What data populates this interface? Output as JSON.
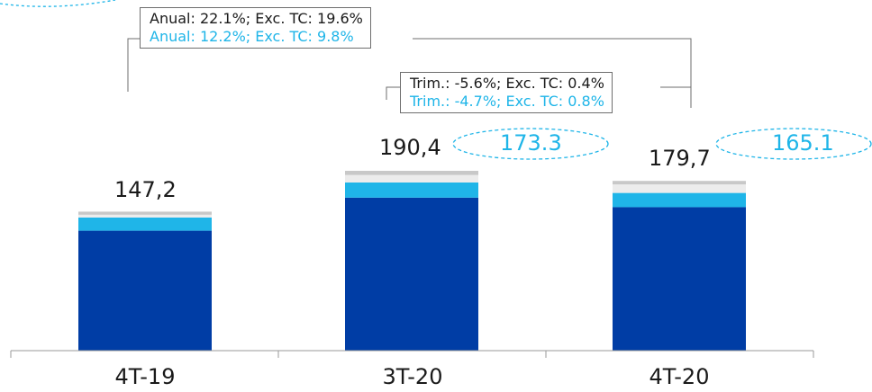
{
  "chart_data": {
    "type": "bar",
    "stacked": true,
    "categories": [
      "4T-19",
      "3T-20",
      "4T-20"
    ],
    "totals_text": [
      "147,2",
      "190,4",
      "179,7"
    ],
    "totals": [
      147.2,
      190.4,
      179.7
    ],
    "series": [
      {
        "name": "",
        "color": "#003da5",
        "values": [
          127.0,
          162.0,
          152.0
        ]
      },
      {
        "name": "",
        "color": "#1fb5e8",
        "values": [
          14.0,
          16.0,
          15.0
        ]
      },
      {
        "name": "",
        "color": "#ececec",
        "values": [
          3.0,
          8.0,
          9.0
        ]
      },
      {
        "name": "",
        "color": "#c8c8c8",
        "values": [
          3.2,
          4.4,
          3.7
        ]
      }
    ],
    "excl_fx_totals_text": [
      "173.3",
      "165.1"
    ],
    "annotations": {
      "annual": {
        "line1": "Anual: 22.1%; Exc. TC: 19.6%",
        "line2": "Anual: 12.2%; Exc. TC: 9.8%"
      },
      "quarterly": {
        "line1": "Trim.: -5.6%; Exc. TC:  0.4%",
        "line2": "Trim.: -4.7%; Exc. TC: 0.8%"
      }
    },
    "colors": {
      "dark_blue": "#003da5",
      "light_blue": "#1fb5e8",
      "light_gray": "#ececec",
      "mid_gray": "#c8c8c8"
    }
  }
}
